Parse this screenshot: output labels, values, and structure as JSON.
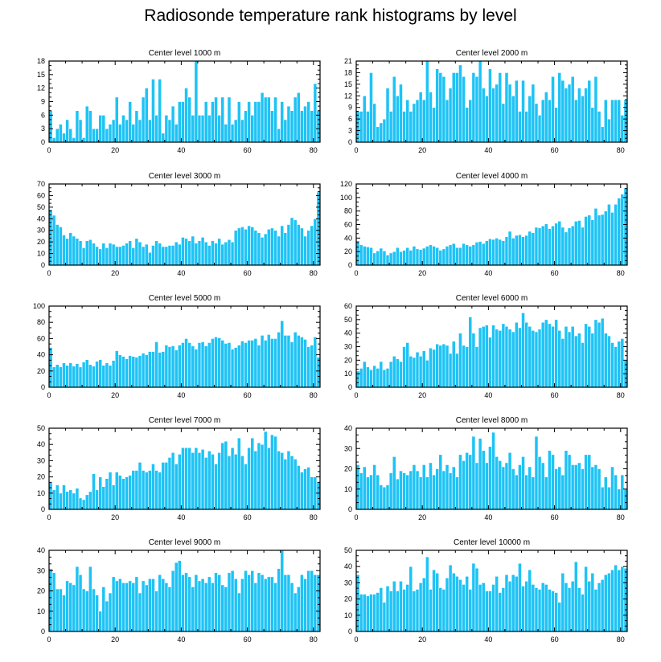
{
  "title": "Radiosonde temperature rank histograms by level",
  "chart_data": [
    {
      "type": "bar",
      "title": "Center level 1000 m",
      "xlim": [
        0,
        82
      ],
      "ylim": [
        0,
        18
      ],
      "yticks": [
        0,
        3,
        6,
        9,
        12,
        15,
        18
      ],
      "xticks": [
        0,
        20,
        40,
        60,
        80
      ],
      "values": [
        7,
        1,
        3,
        4,
        2,
        5,
        3,
        1,
        7,
        5,
        1,
        8,
        7,
        3,
        3,
        6,
        6,
        3,
        4,
        5,
        10,
        4,
        6,
        5,
        9,
        4,
        7,
        5,
        10,
        12,
        5,
        14,
        6,
        14,
        2,
        6,
        5,
        8,
        4,
        9,
        9,
        12,
        10,
        6,
        18,
        6,
        6,
        9,
        6,
        9,
        10,
        6,
        10,
        4,
        10,
        4,
        5,
        9,
        5,
        7,
        9,
        6,
        9,
        9,
        11,
        10,
        10,
        7,
        10,
        3,
        9,
        5,
        8,
        7,
        10,
        11,
        7,
        8,
        9,
        7,
        13,
        7
      ]
    },
    {
      "type": "bar",
      "title": "Center level 2000 m",
      "xlim": [
        0,
        82
      ],
      "ylim": [
        0,
        21
      ],
      "yticks": [
        0,
        3,
        6,
        9,
        12,
        15,
        18,
        21
      ],
      "xticks": [
        0,
        20,
        40,
        60,
        80
      ],
      "values": [
        8,
        8,
        12,
        8,
        18,
        10,
        4,
        5,
        6,
        14,
        8,
        17,
        12,
        15,
        8,
        11,
        8,
        10,
        11,
        13,
        11,
        21,
        13,
        9,
        19,
        18,
        17,
        11,
        14,
        18,
        18,
        20,
        17,
        9,
        11,
        18,
        17,
        21,
        14,
        12,
        19,
        14,
        15,
        18,
        10,
        18,
        15,
        12,
        16,
        8,
        16,
        8,
        12,
        15,
        10,
        7,
        11,
        13,
        11,
        17,
        9,
        18,
        16,
        14,
        15,
        17,
        11,
        14,
        12,
        14,
        16,
        9,
        17,
        8,
        4,
        11,
        6,
        11,
        11,
        11,
        7,
        11
      ]
    },
    {
      "type": "bar",
      "title": "Center level 3000 m",
      "xlim": [
        0,
        82
      ],
      "ylim": [
        0,
        70
      ],
      "yticks": [
        0,
        10,
        20,
        30,
        40,
        50,
        60,
        70
      ],
      "xticks": [
        0,
        20,
        40,
        60,
        80
      ],
      "values": [
        48,
        43,
        35,
        33,
        26,
        23,
        28,
        25,
        23,
        21,
        15,
        21,
        22,
        19,
        16,
        14,
        19,
        15,
        19,
        18,
        16,
        16,
        17,
        19,
        21,
        15,
        23,
        20,
        16,
        18,
        11,
        17,
        21,
        19,
        16,
        16,
        17,
        17,
        20,
        18,
        24,
        23,
        21,
        25,
        19,
        21,
        24,
        20,
        17,
        21,
        19,
        23,
        18,
        20,
        22,
        20,
        30,
        32,
        33,
        31,
        34,
        33,
        30,
        28,
        24,
        27,
        31,
        32,
        30,
        25,
        34,
        28,
        35,
        41,
        39,
        35,
        32,
        25,
        30,
        34,
        40,
        63
      ]
    },
    {
      "type": "bar",
      "title": "Center level 4000 m",
      "xlim": [
        0,
        82
      ],
      "ylim": [
        0,
        120
      ],
      "yticks": [
        0,
        20,
        40,
        60,
        80,
        100,
        120
      ],
      "xticks": [
        0,
        20,
        40,
        60,
        80
      ],
      "values": [
        36,
        30,
        28,
        27,
        26,
        18,
        21,
        25,
        21,
        15,
        18,
        20,
        26,
        20,
        22,
        26,
        22,
        28,
        24,
        23,
        25,
        28,
        30,
        28,
        26,
        22,
        24,
        28,
        30,
        32,
        26,
        26,
        32,
        30,
        28,
        30,
        34,
        35,
        32,
        36,
        39,
        38,
        40,
        38,
        36,
        42,
        50,
        40,
        44,
        45,
        42,
        44,
        50,
        48,
        56,
        55,
        58,
        61,
        54,
        58,
        62,
        65,
        56,
        49,
        55,
        58,
        65,
        66,
        56,
        72,
        74,
        67,
        84,
        74,
        75,
        80,
        90,
        78,
        90,
        99,
        105,
        114
      ]
    },
    {
      "type": "bar",
      "title": "Center level 5000 m",
      "xlim": [
        0,
        82
      ],
      "ylim": [
        0,
        100
      ],
      "yticks": [
        0,
        20,
        40,
        60,
        80,
        100
      ],
      "xticks": [
        0,
        20,
        40,
        60,
        80
      ],
      "values": [
        49,
        25,
        28,
        25,
        30,
        27,
        30,
        26,
        29,
        25,
        31,
        34,
        28,
        26,
        32,
        34,
        27,
        30,
        27,
        33,
        45,
        40,
        38,
        35,
        39,
        38,
        37,
        39,
        42,
        40,
        44,
        44,
        56,
        43,
        44,
        52,
        50,
        51,
        46,
        52,
        55,
        60,
        55,
        51,
        47,
        55,
        56,
        51,
        55,
        60,
        62,
        61,
        58,
        54,
        55,
        47,
        49,
        52,
        57,
        55,
        58,
        58,
        60,
        52,
        64,
        58,
        65,
        60,
        60,
        68,
        82,
        64,
        64,
        56,
        68,
        64,
        62,
        59,
        50,
        52,
        62,
        37
      ]
    },
    {
      "type": "bar",
      "title": "Center level 6000 m",
      "xlim": [
        0,
        82
      ],
      "ylim": [
        0,
        60
      ],
      "yticks": [
        0,
        10,
        20,
        30,
        40,
        50,
        60
      ],
      "xticks": [
        0,
        20,
        40,
        60,
        80
      ],
      "values": [
        12,
        14,
        19,
        15,
        13,
        16,
        14,
        19,
        13,
        14,
        19,
        23,
        21,
        19,
        30,
        33,
        23,
        22,
        26,
        23,
        27,
        20,
        29,
        28,
        32,
        31,
        32,
        31,
        25,
        34,
        25,
        40,
        31,
        30,
        52,
        40,
        30,
        44,
        45,
        46,
        37,
        46,
        43,
        42,
        47,
        45,
        43,
        41,
        48,
        44,
        55,
        48,
        45,
        42,
        41,
        43,
        48,
        50,
        47,
        45,
        50,
        42,
        36,
        45,
        41,
        45,
        38,
        40,
        33,
        47,
        45,
        40,
        50,
        48,
        51,
        40,
        38,
        33,
        30,
        34,
        36,
        20
      ]
    },
    {
      "type": "bar",
      "title": "Center level 7000 m",
      "xlim": [
        0,
        82
      ],
      "ylim": [
        0,
        50
      ],
      "yticks": [
        0,
        10,
        20,
        30,
        40,
        50
      ],
      "xticks": [
        0,
        20,
        40,
        60,
        80
      ],
      "values": [
        17,
        12,
        15,
        10,
        15,
        11,
        12,
        10,
        13,
        7,
        6,
        9,
        11,
        22,
        12,
        20,
        14,
        19,
        23,
        15,
        23,
        21,
        19,
        20,
        21,
        24,
        24,
        29,
        24,
        23,
        24,
        28,
        24,
        23,
        29,
        29,
        32,
        35,
        28,
        34,
        38,
        38,
        38,
        35,
        38,
        35,
        37,
        32,
        36,
        34,
        28,
        35,
        41,
        42,
        33,
        38,
        34,
        44,
        33,
        28,
        38,
        44,
        36,
        41,
        40,
        48,
        38,
        46,
        45,
        36,
        35,
        31,
        36,
        33,
        31,
        27,
        23,
        25,
        26,
        20,
        20,
        17
      ]
    },
    {
      "type": "bar",
      "title": "Center level 8000 m",
      "xlim": [
        0,
        82
      ],
      "ylim": [
        0,
        40
      ],
      "yticks": [
        0,
        10,
        20,
        30,
        40
      ],
      "xticks": [
        0,
        20,
        40,
        60,
        80
      ],
      "values": [
        22,
        18,
        21,
        16,
        17,
        22,
        17,
        12,
        11,
        12,
        18,
        26,
        15,
        19,
        18,
        17,
        19,
        22,
        19,
        16,
        22,
        16,
        23,
        17,
        20,
        27,
        19,
        22,
        18,
        21,
        16,
        27,
        24,
        28,
        27,
        36,
        23,
        35,
        29,
        23,
        31,
        38,
        26,
        24,
        21,
        23,
        28,
        20,
        17,
        22,
        26,
        17,
        21,
        16,
        36,
        26,
        23,
        16,
        29,
        27,
        20,
        21,
        17,
        29,
        27,
        22,
        22,
        23,
        20,
        27,
        27,
        21,
        22,
        20,
        11,
        16,
        11,
        21,
        17,
        10,
        17,
        10
      ]
    },
    {
      "type": "bar",
      "title": "Center level 9000 m",
      "xlim": [
        0,
        82
      ],
      "ylim": [
        0,
        40
      ],
      "yticks": [
        0,
        10,
        20,
        30,
        40
      ],
      "xticks": [
        0,
        20,
        40,
        60,
        80
      ],
      "values": [
        31,
        29,
        21,
        21,
        18,
        25,
        24,
        23,
        32,
        28,
        21,
        20,
        32,
        21,
        18,
        10,
        22,
        15,
        19,
        27,
        25,
        26,
        24,
        24,
        25,
        24,
        27,
        19,
        25,
        23,
        26,
        26,
        20,
        28,
        26,
        24,
        22,
        30,
        34,
        35,
        28,
        29,
        27,
        22,
        28,
        25,
        26,
        24,
        27,
        24,
        29,
        28,
        23,
        22,
        29,
        30,
        26,
        19,
        26,
        30,
        28,
        30,
        24,
        29,
        28,
        26,
        27,
        27,
        24,
        31,
        40,
        28,
        28,
        24,
        19,
        22,
        28,
        26,
        30,
        30,
        28,
        28
      ]
    },
    {
      "type": "bar",
      "title": "Center level 10000 m",
      "xlim": [
        0,
        82
      ],
      "ylim": [
        0,
        50
      ],
      "yticks": [
        0,
        10,
        20,
        30,
        40,
        50
      ],
      "xticks": [
        0,
        20,
        40,
        60,
        80
      ],
      "values": [
        35,
        23,
        23,
        22,
        23,
        23,
        24,
        27,
        18,
        28,
        25,
        31,
        25,
        31,
        26,
        29,
        40,
        25,
        26,
        30,
        33,
        46,
        26,
        38,
        36,
        27,
        26,
        33,
        41,
        36,
        34,
        32,
        29,
        34,
        26,
        42,
        39,
        29,
        30,
        25,
        25,
        29,
        34,
        24,
        27,
        35,
        31,
        35,
        34,
        42,
        28,
        31,
        38,
        29,
        27,
        26,
        30,
        29,
        26,
        25,
        24,
        18,
        36,
        30,
        27,
        31,
        43,
        27,
        23,
        40,
        31,
        36,
        26,
        30,
        32,
        35,
        36,
        38,
        41,
        38,
        40,
        39
      ]
    }
  ]
}
